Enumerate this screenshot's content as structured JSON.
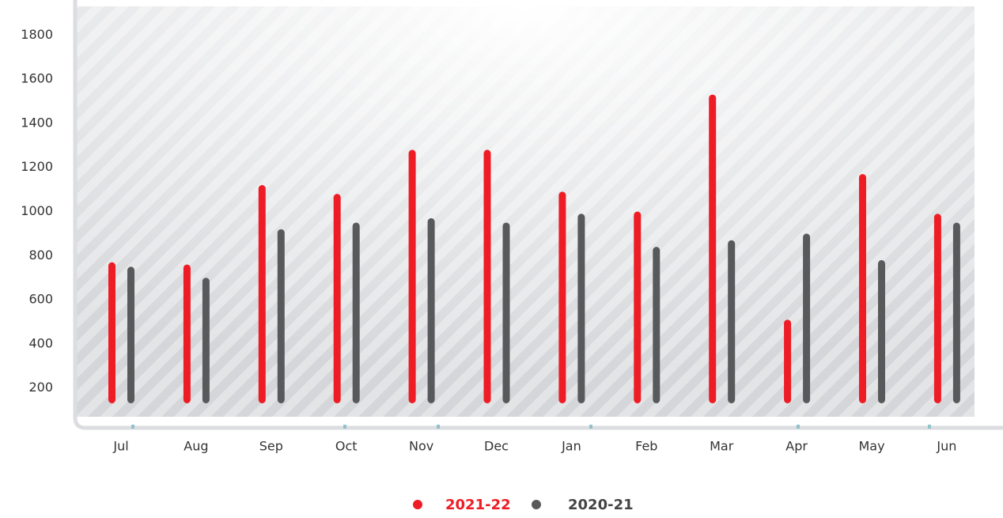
{
  "chart_data": {
    "type": "bar",
    "categories": [
      "Jul",
      "Aug",
      "Sep",
      "Oct",
      "Nov",
      "Dec",
      "Jan",
      "Feb",
      "Mar",
      "Apr",
      "May",
      "Jun"
    ],
    "series": [
      {
        "name": "2021-22",
        "color": "#ee1c25",
        "values": [
          770,
          760,
          1120,
          1080,
          1280,
          1280,
          1090,
          1000,
          1530,
          510,
          1170,
          990
        ]
      },
      {
        "name": "2020-21",
        "color": "#58595b",
        "values": [
          750,
          700,
          920,
          950,
          970,
          950,
          990,
          840,
          870,
          900,
          780,
          950
        ]
      }
    ],
    "ylim": [
      70,
      1930
    ],
    "yticks": [
      200,
      400,
      600,
      800,
      1000,
      1200,
      1400,
      1600,
      1800
    ]
  }
}
